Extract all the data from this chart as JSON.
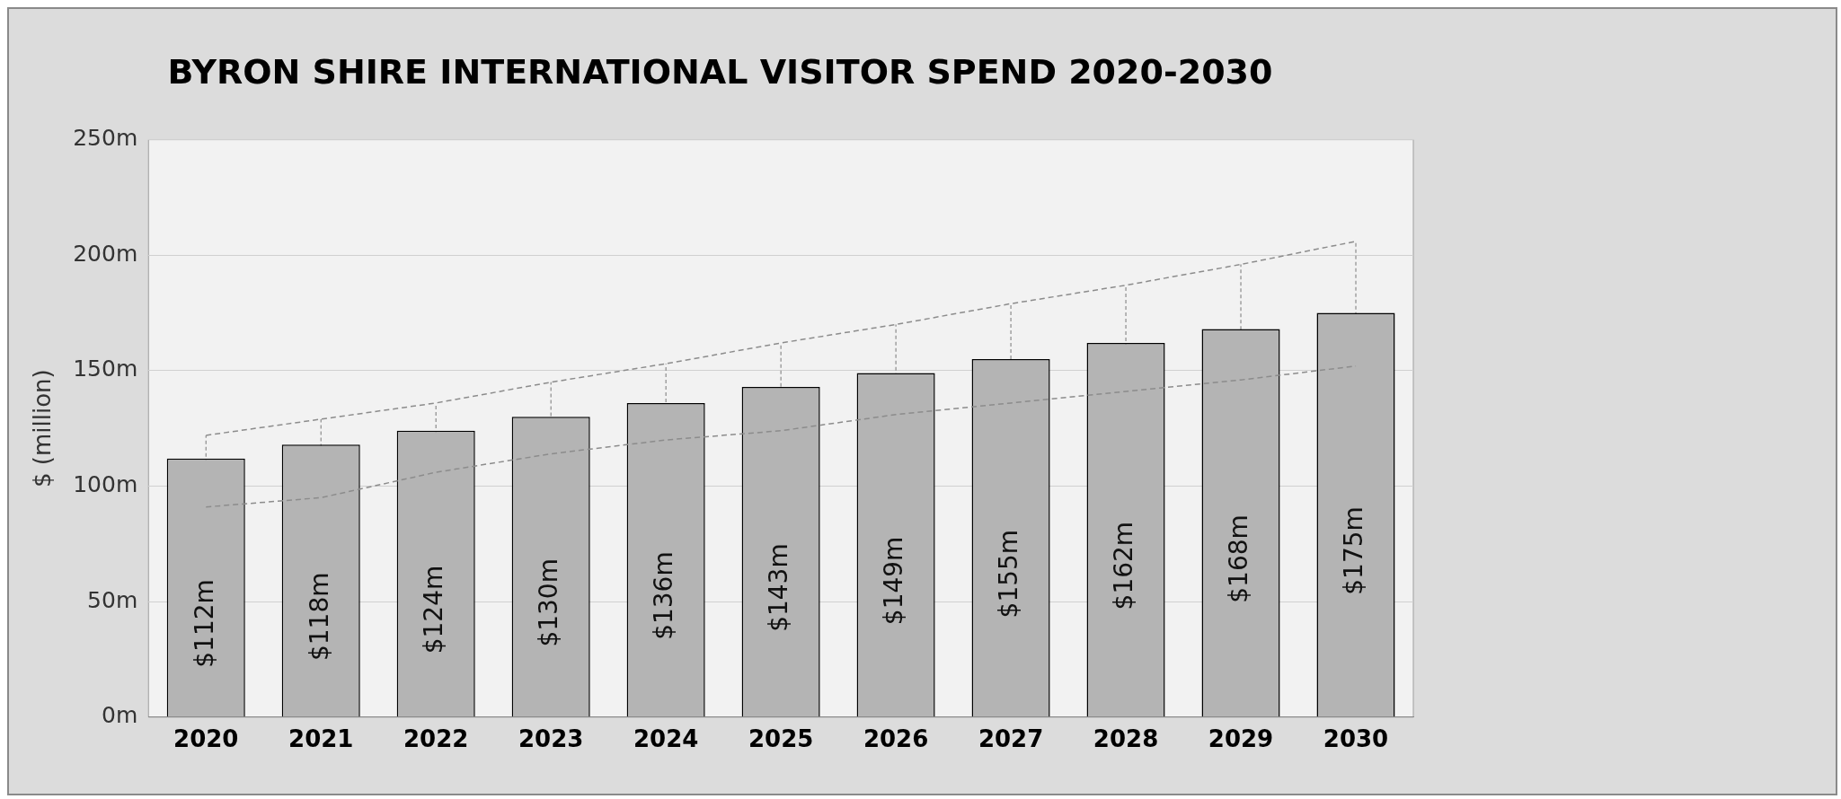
{
  "chart_data": {
    "type": "bar",
    "title": "BYRON SHIRE INTERNATIONAL VISITOR SPEND 2020-2030",
    "ylabel": "$ (million)",
    "categories": [
      "2020",
      "2021",
      "2022",
      "2023",
      "2024",
      "2025",
      "2026",
      "2027",
      "2028",
      "2029",
      "2030"
    ],
    "series": [
      {
        "color": "#b4b4b4",
        "values": [
          112,
          118,
          124,
          130,
          136,
          143,
          149,
          155,
          162,
          168,
          175
        ],
        "value_labels": [
          "$112m",
          "$118m",
          "$124m",
          "$130m",
          "$136m",
          "$143m",
          "$149m",
          "$155m",
          "$162m",
          "$168m",
          "$175m"
        ]
      },
      {
        "type": "line",
        "color": "#8c8c8c",
        "line_style": "dashed",
        "values": [
          122,
          129,
          136,
          145,
          153,
          162,
          170,
          179,
          187,
          196,
          206
        ],
        "errors": [
          [
            91,
            122
          ],
          [
            95,
            129
          ],
          [
            106,
            136
          ],
          [
            114,
            145
          ],
          [
            120,
            153
          ],
          [
            124,
            162
          ],
          [
            131,
            170
          ],
          [
            136,
            179
          ],
          [
            141,
            187
          ],
          [
            146,
            196
          ],
          [
            152,
            206
          ]
        ]
      },
      {
        "type": "line",
        "color": "#8c8c8c",
        "line_style": "dashed",
        "values": [
          91,
          95,
          106,
          114,
          120,
          124,
          131,
          136,
          141,
          146,
          152
        ]
      }
    ],
    "ylim": [
      0,
      250
    ],
    "yticks": [
      {
        "value": 0,
        "label": "0m"
      },
      {
        "value": 50,
        "label": "50m"
      },
      {
        "value": 100,
        "label": "100m"
      },
      {
        "value": 150,
        "label": "150m"
      },
      {
        "value": 200,
        "label": "200m"
      },
      {
        "value": 250,
        "label": "250m"
      }
    ],
    "grid": "y",
    "legend": false,
    "marker": "none"
  }
}
